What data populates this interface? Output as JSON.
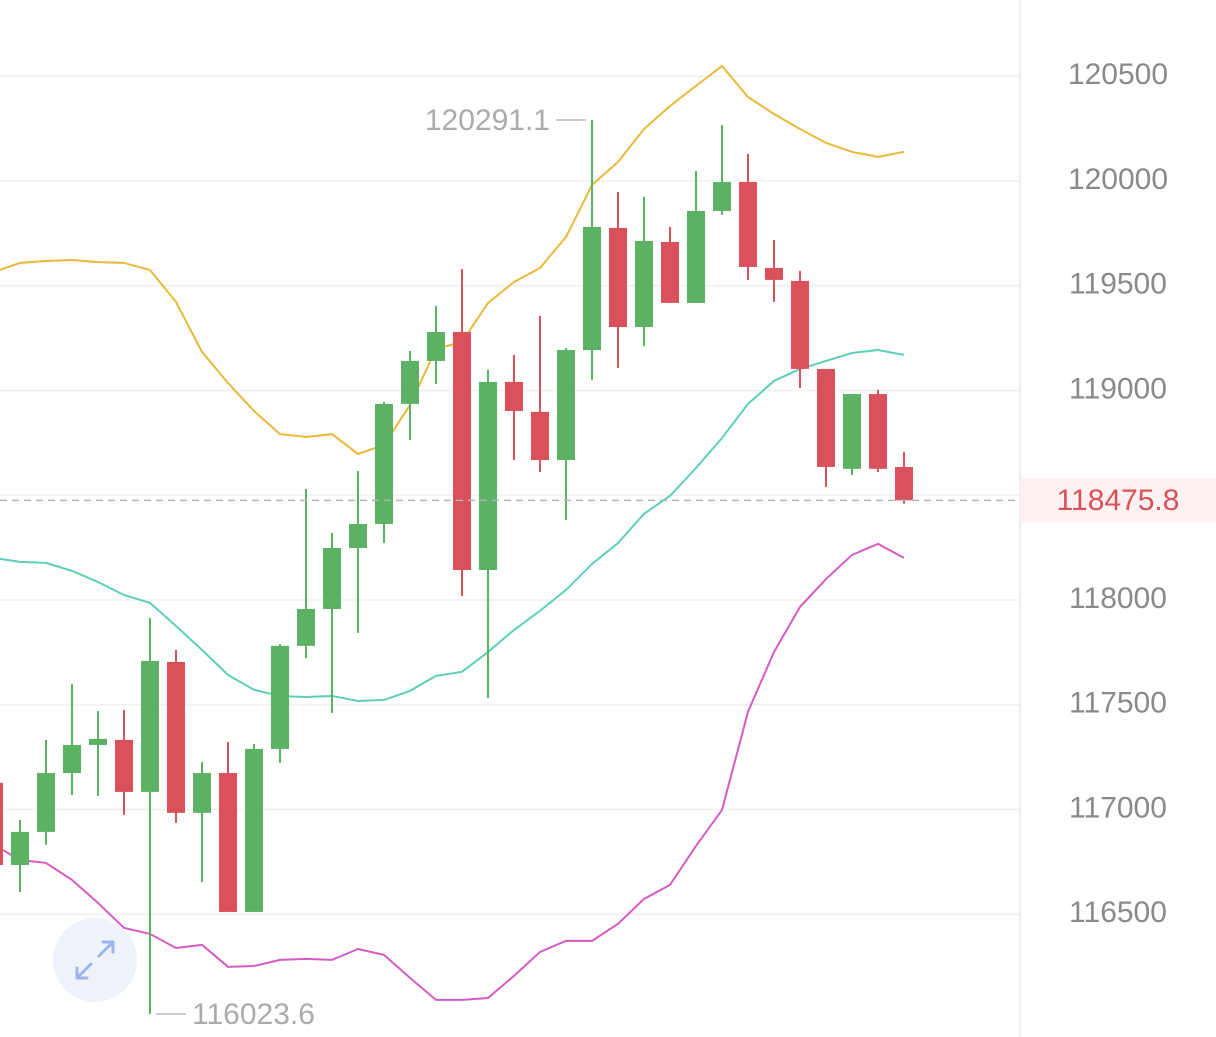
{
  "chart_data": {
    "type": "candlestick",
    "categories": [
      null,
      null,
      null,
      null,
      null,
      null,
      null,
      null,
      null,
      null,
      null,
      null,
      null,
      null,
      null,
      null,
      null,
      null,
      null,
      null,
      null,
      null,
      null,
      null,
      null,
      null,
      null,
      null,
      null,
      null,
      null,
      null,
      null,
      null,
      null,
      null
    ],
    "open": [
      117127,
      116735,
      116893,
      117174,
      117308,
      117332,
      117084,
      117704,
      116984,
      117174,
      116511,
      117289,
      117781,
      117957,
      118248,
      118363,
      118936,
      119141,
      119279,
      118143,
      119041,
      118898,
      118668,
      119193,
      119776,
      119303,
      119709,
      119418,
      119857,
      119995,
      119585,
      119523,
      119103,
      118626,
      118983,
      118635
    ],
    "high": [
      117127,
      116950,
      117332,
      117599,
      117470,
      117475,
      117914,
      117762,
      117227,
      117322,
      117313,
      117790,
      118530,
      118320,
      118616,
      118945,
      119189,
      119404,
      119580,
      119098,
      119170,
      119356,
      119203,
      120291.1,
      119948,
      119924,
      119781,
      120048,
      120267,
      120129,
      119719,
      119571,
      119103,
      118983,
      119003,
      118707
    ],
    "low": [
      116735,
      116606,
      116831,
      117069,
      117065,
      116974,
      116023.6,
      116936,
      116654,
      116511,
      116511,
      117222,
      117723,
      117461,
      117843,
      118272,
      118764,
      119031,
      118019,
      117532,
      118668,
      118611,
      118382,
      119050,
      119108,
      119213,
      119418,
      119418,
      119838,
      119528,
      119423,
      119012,
      118540,
      118597,
      118611,
      118460
    ],
    "close": [
      116735,
      116893,
      117174,
      117308,
      117337,
      117084,
      117709,
      116984,
      117174,
      116511,
      117289,
      117781,
      117957,
      118248,
      118363,
      118936,
      119141,
      119279,
      118143,
      119041,
      118902,
      118668,
      119193,
      119781,
      119303,
      119714,
      119418,
      119857,
      119995,
      119590,
      119528,
      119103,
      118635,
      118983,
      118626,
      118475.8
    ],
    "up_color": "#5cb264",
    "down_color": "#d9515a",
    "lines": [
      {
        "color": "#e8b93a",
        "values": [
          119566,
          119609,
          119618,
          119623,
          119613,
          119609,
          119575,
          119423,
          119184,
          119036,
          118902,
          118792,
          118778,
          118792,
          118697,
          118740,
          118931,
          119198,
          119232,
          119418,
          119518,
          119585,
          119733,
          119981,
          120091,
          120248,
          120358,
          120454,
          120549,
          120401,
          120320,
          120248,
          120182,
          120139,
          120115,
          120139
        ]
      },
      {
        "color": "#5ccfb8",
        "values": [
          118201,
          118182,
          118177,
          118139,
          118086,
          118024,
          117986,
          117876,
          117762,
          117642,
          117571,
          117542,
          117537,
          117542,
          117518,
          117523,
          117566,
          117638,
          117657,
          117752,
          117857,
          117948,
          118048,
          118172,
          118272,
          118411,
          118497,
          118630,
          118773,
          118936,
          119046,
          119103,
          119141,
          119179,
          119193,
          119170
        ]
      },
      {
        "color": "#d65bc2",
        "values": [
          116831,
          116759,
          116745,
          116664,
          116554,
          116435,
          116406,
          116339,
          116354,
          116249,
          116253,
          116282,
          116287,
          116282,
          116334,
          116306,
          116196,
          116091,
          116091,
          116100,
          116206,
          116320,
          116373,
          116373,
          116454,
          116573,
          116640,
          116826,
          116998,
          117466,
          117752,
          117967,
          118100,
          118215,
          118268,
          118201
        ]
      }
    ],
    "ylim": [
      115914,
      120864
    ],
    "yticks": [
      116500,
      117000,
      117500,
      118000,
      118500,
      119000,
      119500,
      120000,
      120500
    ],
    "grid": true
  }
}
